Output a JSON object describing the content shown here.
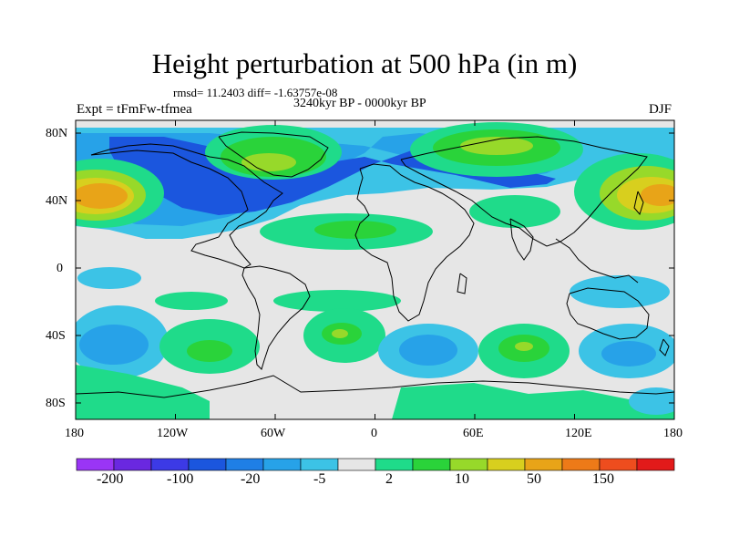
{
  "title": "Height perturbation at 500 hPa (in m)",
  "stats_line": "rmsd= 11.2403 diff= -1.63757e-08",
  "period": "3240kyr BP - 0000kyr BP",
  "experiment": "Expt = tFmFw-tfmea",
  "season": "DJF",
  "lat_ticks": [
    "80N",
    "40N",
    "0",
    "40S",
    "80S"
  ],
  "lon_ticks": [
    "180",
    "120W",
    "60W",
    "0",
    "60E",
    "120E",
    "180"
  ],
  "colorbar": {
    "colors": [
      "#9a35f5",
      "#6a28e0",
      "#3c3ae6",
      "#1b56de",
      "#1f7fe6",
      "#27a2e8",
      "#3cc3e6",
      "#e6e6e6",
      "#1fdb8a",
      "#2ad33a",
      "#97d92a",
      "#d8cf1e",
      "#e8a418",
      "#ed7a18",
      "#ee4d1e",
      "#e21a1a"
    ],
    "labels": [
      "-200",
      "-100",
      "-20",
      "-5",
      "2",
      "10",
      "50",
      "150"
    ]
  },
  "map_colors": {
    "ocean_bg": "#e6e6e6",
    "blue_dark": "#1b56de",
    "blue_med": "#27a2e8",
    "cyan": "#3cc3e6",
    "green_light": "#1fdb8a",
    "green": "#2ad33a",
    "yellow_green": "#97d92a",
    "yellow": "#d8cf1e",
    "orange": "#e8a418",
    "coast": "#000000"
  }
}
